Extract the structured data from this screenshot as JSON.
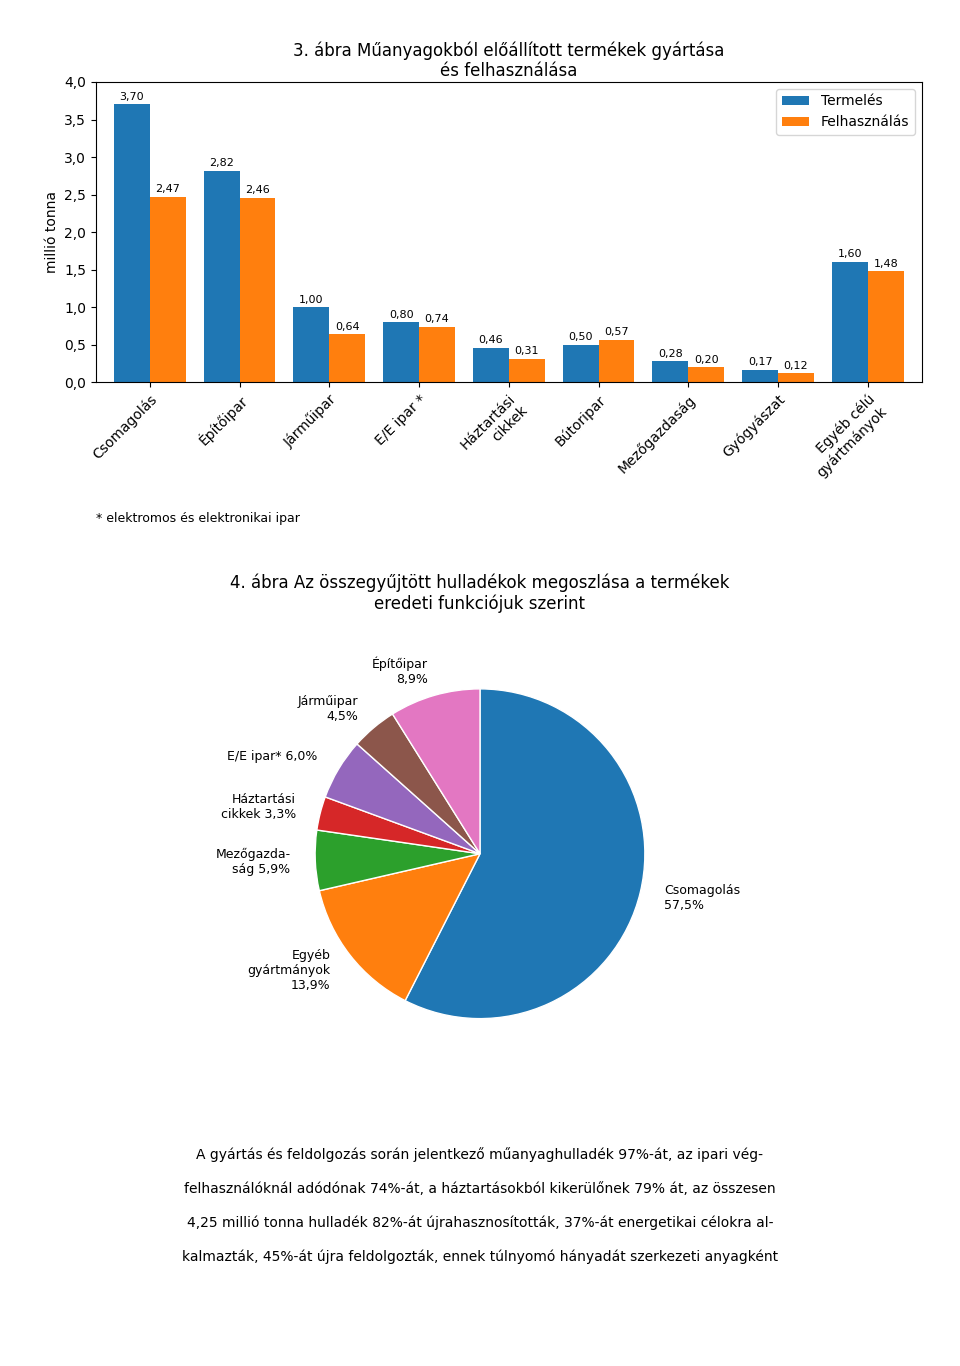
{
  "chart_data": [
    {
      "type": "bar",
      "title": "3. ábra Műanyagokból előállított termékek gyártása\nés felhasználása",
      "categories": [
        "Csomagolás",
        "Építőipar",
        "Járműipar",
        "E/E ipar *",
        "Háztartási\ncikkek",
        "Bútoripar",
        "Mezőgazdaság",
        "Gyógyászat",
        "Egyéb célú\ngyártmányok"
      ],
      "series": [
        {
          "name": "Termelés",
          "values": [
            3.7,
            2.82,
            1.0,
            0.8,
            0.46,
            0.5,
            0.28,
            0.17,
            1.6
          ],
          "value_labels": [
            "3,70",
            "2,82",
            "1,00",
            "0,80",
            "0,46",
            "0,50",
            "0,28",
            "0,17",
            "1,60"
          ]
        },
        {
          "name": "Felhasználás",
          "values": [
            2.47,
            2.46,
            0.64,
            0.74,
            0.31,
            0.57,
            0.2,
            0.12,
            1.48
          ],
          "value_labels": [
            "2,47",
            "2,46",
            "0,64",
            "0,74",
            "0,31",
            "0,57",
            "0,20",
            "0,12",
            "1,48"
          ]
        }
      ],
      "ylabel": "millió tonna",
      "ylim": [
        0,
        4.0
      ],
      "yticks": [
        {
          "value": 0.0,
          "label": "0,0"
        },
        {
          "value": 0.5,
          "label": "0,5"
        },
        {
          "value": 1.0,
          "label": "1,0"
        },
        {
          "value": 1.5,
          "label": "1,5"
        },
        {
          "value": 2.0,
          "label": "2,0"
        },
        {
          "value": 2.5,
          "label": "2,5"
        },
        {
          "value": 3.0,
          "label": "3,0"
        },
        {
          "value": 3.5,
          "label": "3,5"
        },
        {
          "value": 4.0,
          "label": "4,0"
        }
      ],
      "legend": "upper right",
      "grid": false,
      "data_labels": true,
      "annotations": [
        "* elektromos és elektronikai ipar"
      ]
    },
    {
      "type": "pie",
      "title": "4. ábra Az összegyűjtött hulladékok megoszlása a termékek\neredeti funkciójuk szerint",
      "categories": [
        "Csomagolás\n57,5%",
        "Egyéb\ngyártmányok\n13,9%",
        "Mezőgazda-\nság 5,9%",
        "Háztartási\ncikkek 3,3%",
        "E/E ipar* 6,0%",
        "Járműipar\n4,5%",
        "Építőipar\n8,9%"
      ],
      "values": [
        57.5,
        13.9,
        5.9,
        3.3,
        6.0,
        4.5,
        8.9
      ],
      "annotations": [
        "A gyártás és feldolgozás során jelentkező műanyaghulladék 97%-át, az ipari vég-",
        "felhasználóknál adódónak 74%-át, a háztartásokból kikerülőnek 79% át, az összesen",
        "4,25 millió tonna hulladék 82%-át újrahasznosították, 37%-át energetikai célokra al-",
        "kalmazták, 45%-át újra feldolgozták, ennek túlnyomó hányadát szerkezeti anyagként"
      ]
    }
  ]
}
